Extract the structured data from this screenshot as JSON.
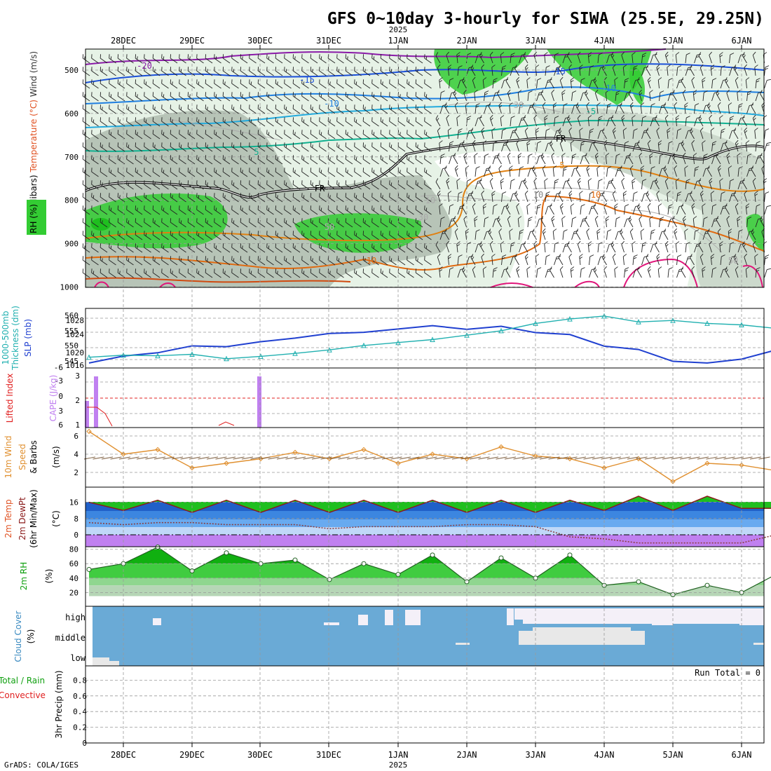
{
  "title": "GFS 0~10day 3-hourly for SIWA (25.5E, 29.25N)",
  "year": "2025",
  "footer": "GrADS: COLA/IGES",
  "date_labels": [
    "28DEC",
    "29DEC",
    "30DEC",
    "31DEC",
    "1JAN",
    "2JAN",
    "3JAN",
    "4JAN",
    "5JAN",
    "6JAN"
  ],
  "colors": {
    "rh_green": "#33cc33",
    "rh_light": "#e6f2e6",
    "rh_grey": "#b7c4b7",
    "temp_orange": "#e08010",
    "wind_blue": "#1a4fd8",
    "wind_purple": "#8a1aa8",
    "thickness_teal": "#20b0b0",
    "slp_blue": "#2040d0",
    "cape_purple": "#c080f0",
    "lifted_red": "#e02020",
    "wind10_orange": "#e09030",
    "cloud_blue": "#6aaad6",
    "cloud_white": "#f4f0f8"
  },
  "panels": {
    "upper": {
      "ylabel_parts": [
        "Wind (m/s)",
        "Temperature (°C)",
        "RH (%)",
        "(millibars)"
      ],
      "ticks": [
        "500",
        "600",
        "700",
        "800",
        "900",
        "1000"
      ],
      "contour_labels": [
        "-20",
        "-15",
        "-15",
        "-10",
        "-10",
        "-5",
        "5",
        "FR",
        "FR",
        "10",
        "10",
        "5",
        "10",
        "30",
        "50",
        "10",
        "30",
        "50"
      ]
    },
    "slp": {
      "ylabel_parts": [
        "1000-500mb",
        "Thickness (dm)",
        "SLP (mb)"
      ],
      "left_ticks": [
        "545",
        "550",
        "555",
        "560"
      ],
      "right_ticks": [
        "1016",
        "1020",
        "1024",
        "1028"
      ]
    },
    "cape": {
      "ylabel_parts": [
        "Lifted Index",
        "CAPE (J/kg)"
      ],
      "left_ticks": [
        "6",
        "3",
        "0",
        "-3",
        "-6"
      ],
      "right_ticks": [
        "1",
        "2",
        "3"
      ]
    },
    "wind10": {
      "ylabel_parts": [
        "10m Wind",
        "Speed",
        "& Barbs",
        "(m/s)"
      ],
      "ticks": [
        "2",
        "4",
        "6"
      ]
    },
    "temp2m": {
      "ylabel_parts": [
        "2m Temp",
        "2m DewPt",
        "(6hr Min/Max)",
        "(°C)"
      ],
      "ticks": [
        "0",
        "8",
        "16"
      ]
    },
    "rh2m": {
      "ylabel_parts": [
        "2m RH",
        "(%)"
      ],
      "ticks": [
        "20",
        "40",
        "60",
        "80"
      ]
    },
    "cloud": {
      "ylabel_parts": [
        "Cloud Cover",
        "(%)"
      ],
      "levels": [
        "high",
        "middle",
        "low"
      ]
    },
    "precip": {
      "ylabel_parts": [
        "Total / Rain",
        "Convective",
        "3hr Precip (mm)"
      ],
      "ticks": [
        "0",
        "0.2",
        "0.4",
        "0.6",
        "0.8"
      ],
      "run_total": "Run Total = 0"
    }
  },
  "chart_data": [
    {
      "type": "line",
      "name": "1000-500mb Thickness / SLP",
      "x": [
        "27DEC12",
        "28DEC00",
        "28DEC12",
        "29DEC00",
        "29DEC12",
        "30DEC00",
        "30DEC12",
        "31DEC00",
        "31DEC12",
        "1JAN00",
        "1JAN12",
        "2JAN00",
        "2JAN12",
        "3JAN00",
        "3JAN12",
        "4JAN00",
        "4JAN12",
        "5JAN00",
        "5JAN12",
        "6JAN00",
        "6JAN06"
      ],
      "series": [
        {
          "name": "SLP (mb)",
          "values": [
            1016.3,
            1018.8,
            1020.0,
            1022.5,
            1022.2,
            1024.0,
            1025.3,
            1027.0,
            1027.4,
            1028.6,
            1029.8,
            1028.5,
            1029.6,
            1027.3,
            1026.6,
            1022.4,
            1021.2,
            1016.9,
            1016.3,
            1017.7,
            1021.0
          ]
        },
        {
          "name": "1000-500mb Thickness (dm)",
          "values": [
            546.5,
            547.2,
            547.0,
            547.5,
            546.0,
            546.8,
            547.8,
            549.0,
            550.5,
            551.5,
            552.5,
            554.0,
            555.5,
            558.0,
            559.5,
            560.5,
            558.5,
            559.0,
            558.0,
            557.5,
            556.3
          ]
        }
      ]
    },
    {
      "type": "bar",
      "name": "CAPE (J/kg)",
      "x": [
        "27DEC15",
        "27DEC18",
        "30DEC00"
      ],
      "values": [
        2.0,
        3.0,
        3.0
      ]
    },
    {
      "type": "line",
      "name": "10m Wind Speed (m/s)",
      "x": [
        "27DEC12",
        "28DEC00",
        "28DEC12",
        "29DEC00",
        "29DEC12",
        "30DEC00",
        "30DEC12",
        "31DEC00",
        "31DEC12",
        "1JAN00",
        "1JAN12",
        "2JAN00",
        "2JAN12",
        "3JAN00",
        "3JAN12",
        "4JAN00",
        "4JAN12",
        "5JAN00",
        "5JAN12",
        "6JAN00",
        "6JAN06"
      ],
      "values": [
        6.5,
        4.0,
        4.5,
        2.5,
        3.0,
        3.5,
        4.2,
        3.5,
        4.5,
        3.0,
        4.0,
        3.5,
        4.8,
        3.8,
        3.5,
        2.5,
        3.5,
        1.0,
        3.0,
        2.8,
        2.2
      ]
    },
    {
      "type": "area",
      "name": "2m Temp / DewPt (°C)",
      "x": [
        "27DEC12",
        "28DEC00",
        "28DEC12",
        "29DEC00",
        "29DEC12",
        "30DEC00",
        "30DEC12",
        "31DEC00",
        "31DEC12",
        "1JAN00",
        "1JAN12",
        "2JAN00",
        "2JAN12",
        "3JAN00",
        "3JAN12",
        "4JAN00",
        "4JAN12",
        "5JAN00",
        "5JAN12",
        "6JAN00",
        "6JAN06"
      ],
      "series": [
        {
          "name": "2m Temp",
          "values": [
            16,
            12,
            17,
            11,
            17,
            11,
            17,
            11,
            17,
            11,
            17,
            11,
            17,
            11,
            17,
            12,
            19,
            12,
            19,
            13,
            13
          ]
        },
        {
          "name": "2m DewPt",
          "values": [
            6,
            5,
            6,
            6,
            5,
            5,
            5,
            3,
            4,
            4,
            4,
            5,
            5,
            4,
            -1,
            -2,
            -4,
            -4,
            -4,
            -4,
            0
          ]
        }
      ]
    },
    {
      "type": "area",
      "name": "2m RH (%)",
      "x": [
        "27DEC12",
        "28DEC00",
        "28DEC12",
        "29DEC00",
        "29DEC12",
        "30DEC00",
        "30DEC12",
        "31DEC00",
        "31DEC12",
        "1JAN00",
        "1JAN12",
        "2JAN00",
        "2JAN12",
        "3JAN00",
        "3JAN12",
        "4JAN00",
        "4JAN12",
        "5JAN00",
        "5JAN12",
        "6JAN00",
        "6JAN06"
      ],
      "values": [
        52,
        60,
        83,
        50,
        75,
        60,
        65,
        38,
        60,
        45,
        72,
        35,
        68,
        40,
        72,
        30,
        35,
        17,
        30,
        20,
        45
      ]
    },
    {
      "type": "bar",
      "name": "3hr Precip (mm)",
      "x": [],
      "values": []
    }
  ]
}
